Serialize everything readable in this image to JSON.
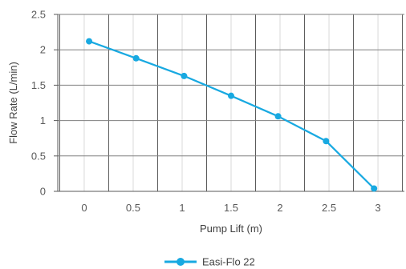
{
  "chart_data": {
    "type": "line",
    "title": "",
    "xlabel": "Pump Lift (m)",
    "ylabel": "Flow Rate (L/min)",
    "xlim": [
      -0.27,
      3.27
    ],
    "ylim": [
      0,
      2.5
    ],
    "x_ticks": [
      0,
      0.5,
      1,
      1.5,
      2,
      2.5,
      3
    ],
    "x_tick_labels": [
      "0",
      "0.5",
      "1",
      "1.5",
      "2",
      "2.5",
      "3"
    ],
    "y_ticks": [
      0,
      0.5,
      1,
      1.5,
      2,
      2.5
    ],
    "y_tick_labels": [
      "0",
      "0.5",
      "1",
      "1.5",
      "2",
      "2.5"
    ],
    "grid": true,
    "legend_position": "bottom-center",
    "series": [
      {
        "name": "Easi-Flo 22",
        "color": "#18a9e1",
        "x": [
          0.05,
          0.53,
          1.02,
          1.5,
          1.98,
          2.47,
          2.96
        ],
        "y": [
          2.12,
          1.88,
          1.63,
          1.35,
          1.06,
          0.71,
          0.04
        ]
      }
    ]
  }
}
